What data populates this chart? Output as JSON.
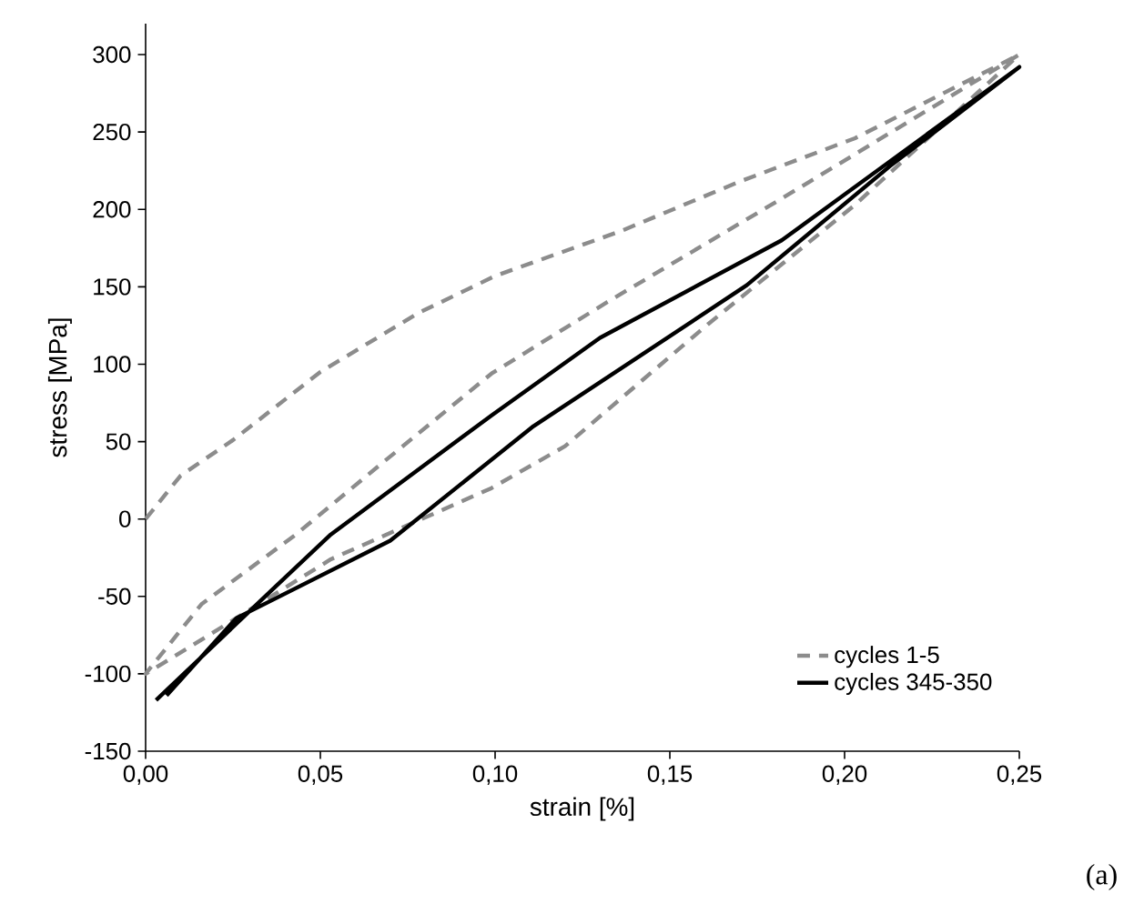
{
  "chart_data": {
    "type": "line",
    "xlabel": "strain [%]",
    "ylabel": "stress [MPa]",
    "annotations": [
      "(a)"
    ],
    "xlim": [
      0,
      0.25
    ],
    "ylim": [
      -150,
      320
    ],
    "xticks": [
      {
        "value": 0,
        "label": "0,00"
      },
      {
        "value": 0.05,
        "label": "0,05"
      },
      {
        "value": 0.1,
        "label": "0,10"
      },
      {
        "value": 0.15,
        "label": "0,15"
      },
      {
        "value": 0.2,
        "label": "0,20"
      },
      {
        "value": 0.25,
        "label": "0,25"
      }
    ],
    "yticks": [
      -150,
      -100,
      -50,
      0,
      50,
      100,
      150,
      200,
      250,
      300
    ],
    "grid": false,
    "legend": "bottom right",
    "series": [
      {
        "name": "cycles 1-5",
        "color": "#8c8c8c",
        "line_style": "dashed",
        "x": [
          0,
          0.01,
          0.025,
          0.05,
          0.078,
          0.1,
          0.136,
          0.17,
          0.203,
          0.25,
          0.182,
          0.132,
          0.099,
          0.066,
          0.043,
          0.016,
          0,
          0.016,
          0.053,
          0.099,
          0.12,
          0.161,
          0.203,
          0.25
        ],
        "values": [
          0,
          28,
          51,
          95,
          133,
          157,
          186,
          218,
          246,
          300,
          207,
          140,
          94,
          33,
          -10,
          -55,
          -100,
          -78,
          -26,
          20,
          47,
          126,
          203,
          300
        ]
      },
      {
        "name": "cycles 345-350",
        "color": "#000000",
        "line_style": "solid",
        "x": [
          0.003,
          0.037,
          0.053,
          0.099,
          0.13,
          0.182,
          0.25,
          0.213,
          0.172,
          0.111,
          0.07,
          0.026,
          0.006
        ],
        "values": [
          -117,
          -44,
          -10,
          67,
          117,
          180,
          292,
          228,
          151,
          60,
          -14,
          -64,
          -114
        ]
      }
    ]
  }
}
